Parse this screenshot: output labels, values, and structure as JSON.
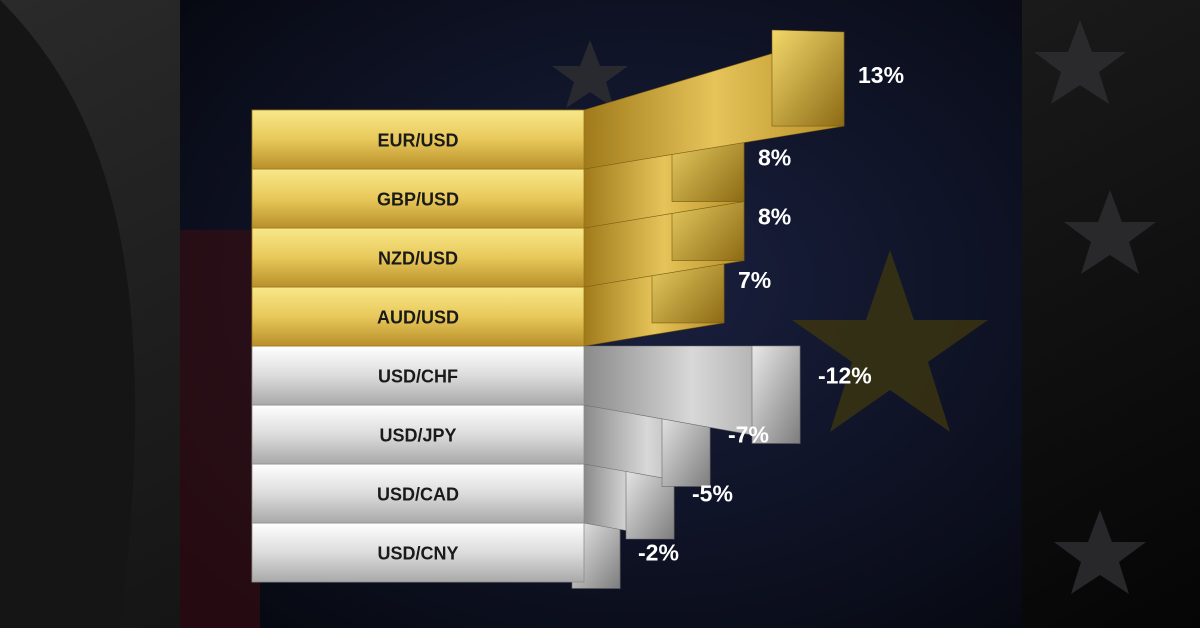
{
  "chart_data": {
    "type": "bar",
    "orientation": "horizontal",
    "categories": [
      "EUR/USD",
      "GBP/USD",
      "NZD/USD",
      "AUD/USD",
      "USD/CHF",
      "USD/JPY",
      "USD/CAD",
      "USD/CNY"
    ],
    "values": [
      13,
      8,
      8,
      7,
      -12,
      -7,
      -5,
      -2
    ],
    "value_labels": [
      "13%",
      "8%",
      "8%",
      "7%",
      "-12%",
      "-7%",
      "-5%",
      "-2%"
    ],
    "unit": "%",
    "grid": false,
    "legend": "none"
  },
  "colors": {
    "gold_light": "#f6e27a",
    "gold_mid": "#d9b63c",
    "gold_dark": "#8c6a14",
    "silver_light": "#f4f4f4",
    "silver_mid": "#c9c9c9",
    "silver_dark": "#7d7d7d",
    "label_text": "#1a1a1a",
    "value_text": "#ffffff",
    "background": "#0b0b0e",
    "panel": "#10142a",
    "star_yellow": "#3a3410"
  },
  "background_motifs": [
    "us-flag-stars-icon",
    "eu-flag-star-icon"
  ]
}
